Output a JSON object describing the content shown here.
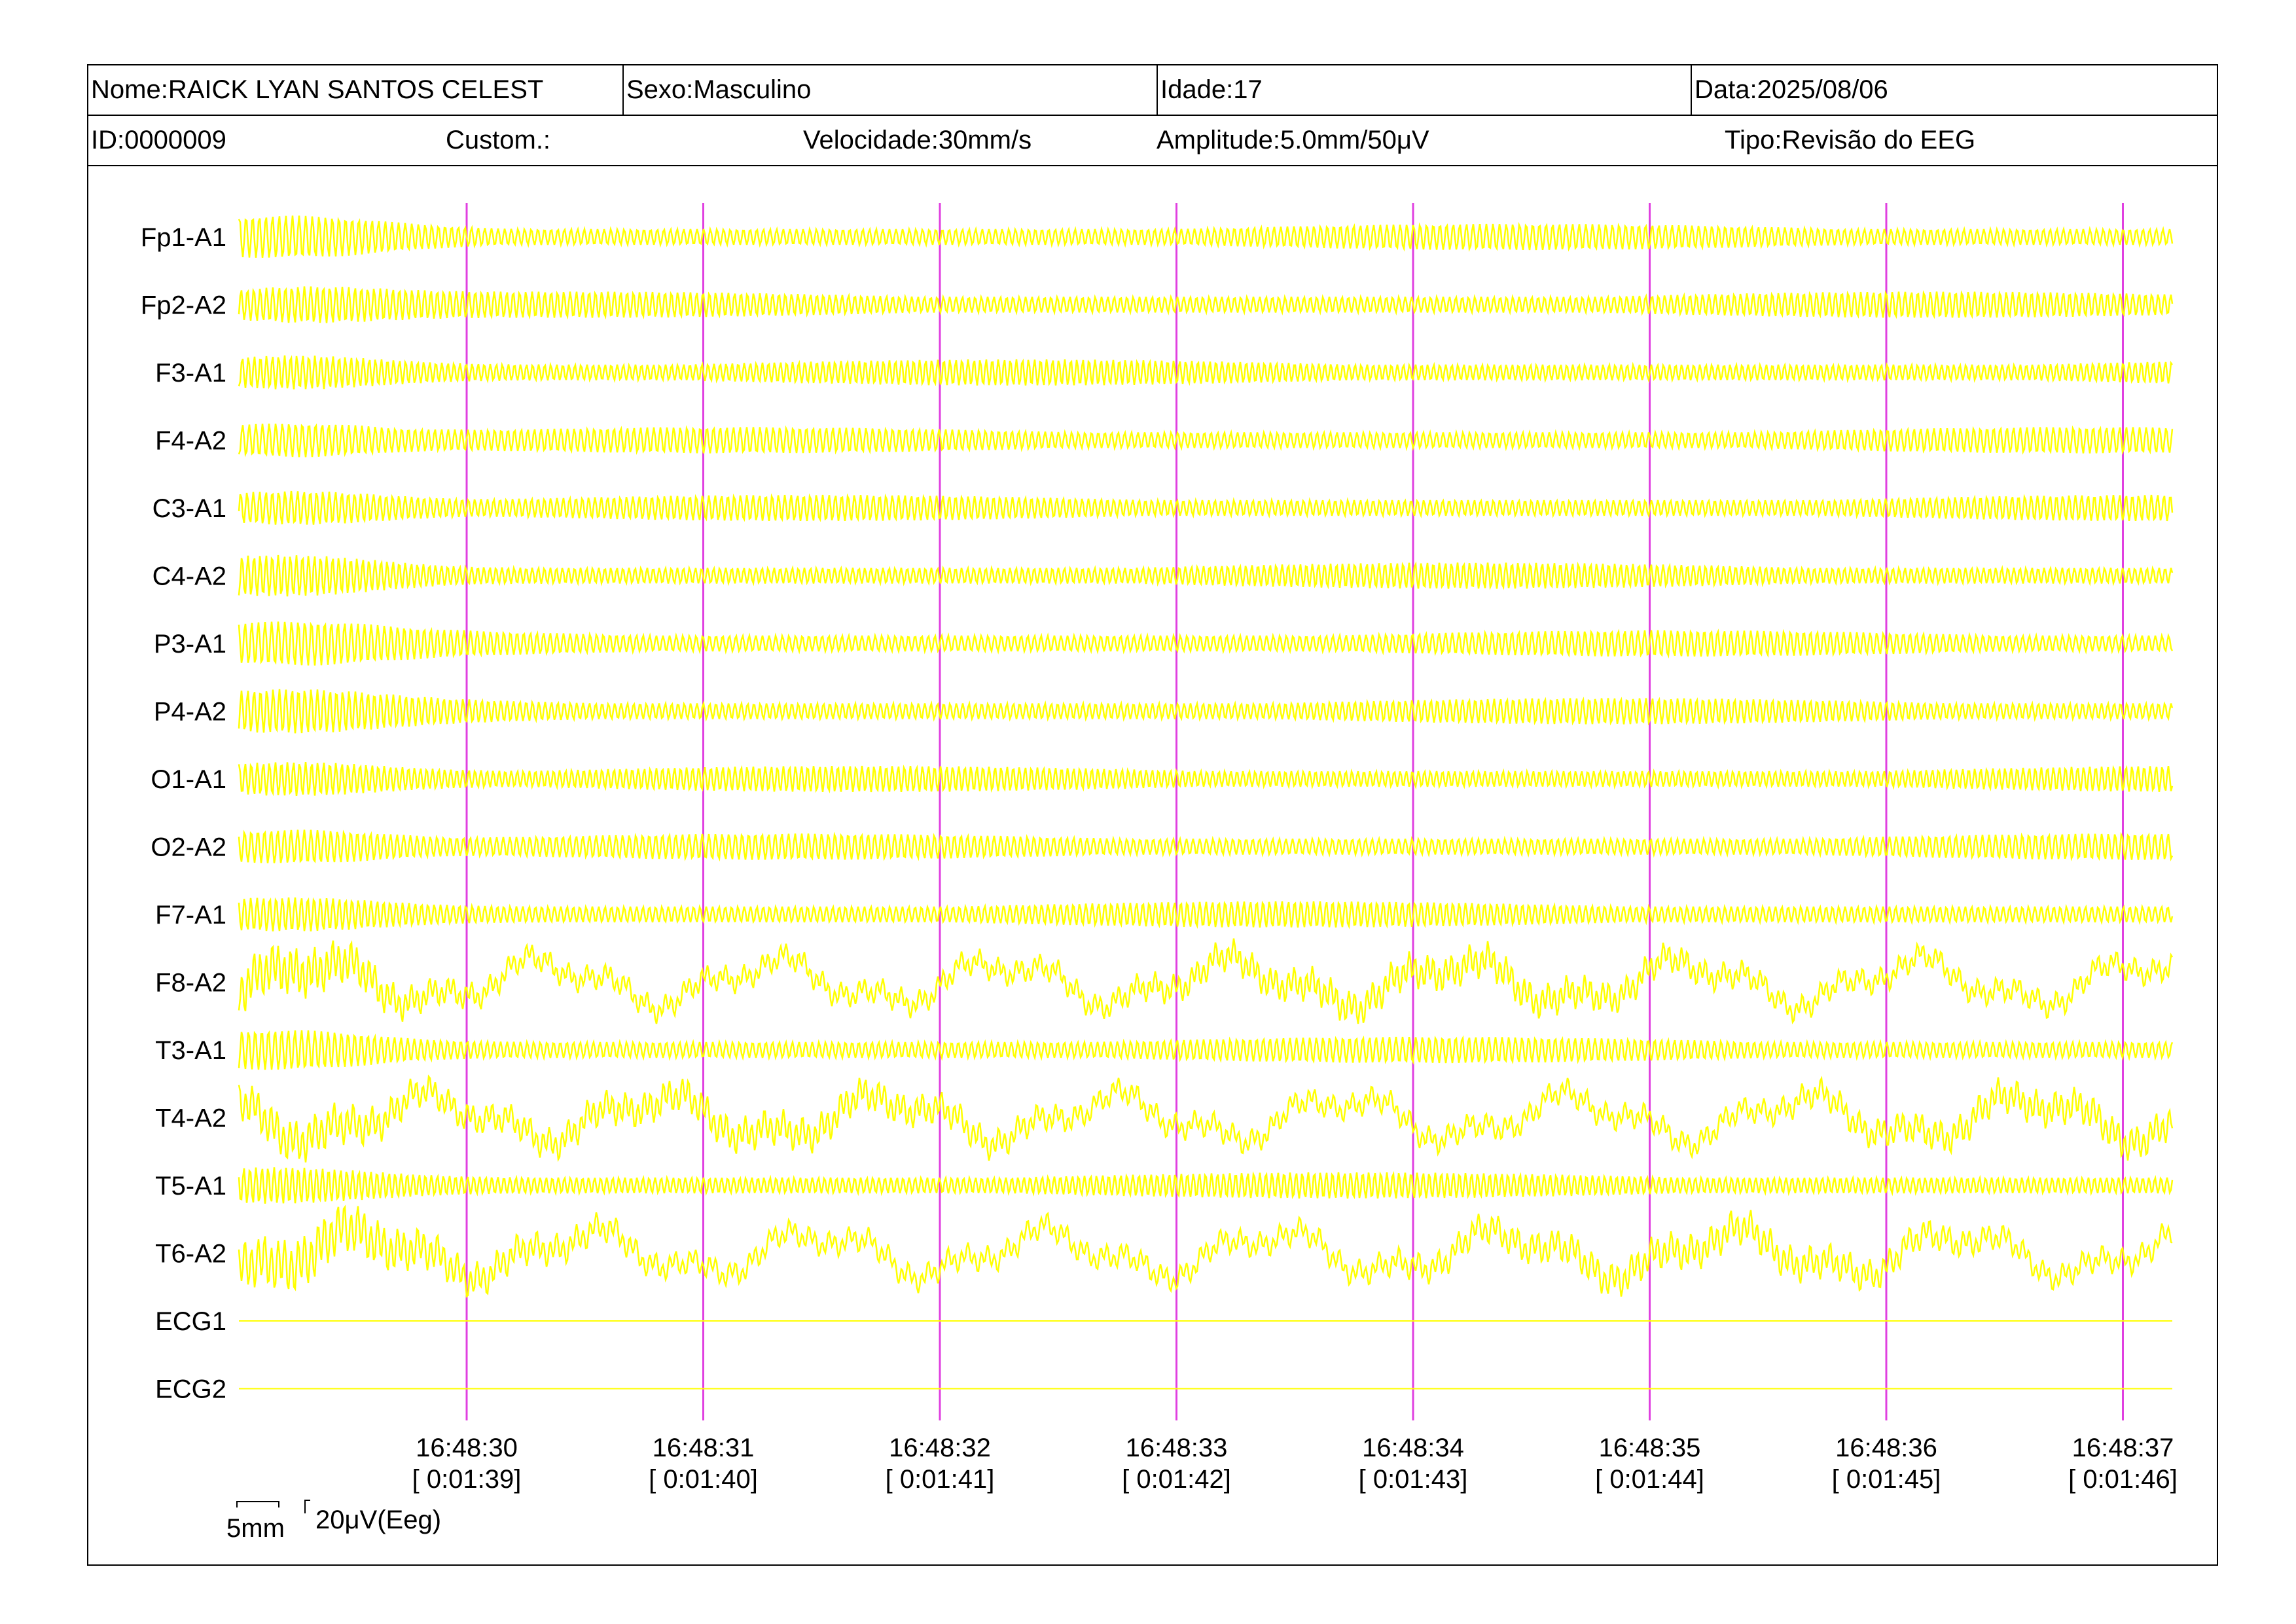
{
  "header": {
    "nome": "Nome:RAICK LYAN SANTOS CELEST",
    "sexo": "Sexo:Masculino",
    "idade": "Idade:17",
    "data": "Data:2025/08/06",
    "id": "ID:0000009",
    "custom": "Custom.:",
    "velocidade": "Velocidade:30mm/s",
    "amplitude": "Amplitude:5.0mm/50μV",
    "tipo": "Tipo:Revisão do EEG"
  },
  "chart_data": {
    "type": "line",
    "channels": [
      "Fp1-A1",
      "Fp2-A2",
      "F3-A1",
      "F4-A2",
      "C3-A1",
      "C4-A2",
      "P3-A1",
      "P4-A2",
      "O1-A1",
      "O2-A2",
      "F7-A1",
      "F8-A2",
      "T3-A1",
      "T4-A2",
      "T5-A1",
      "T6-A2",
      "ECG1",
      "ECG2"
    ],
    "time_markers": [
      {
        "clock": "16:48:30",
        "elapsed": "[ 0:01:39]"
      },
      {
        "clock": "16:48:31",
        "elapsed": "[ 0:01:40]"
      },
      {
        "clock": "16:48:32",
        "elapsed": "[ 0:01:41]"
      },
      {
        "clock": "16:48:33",
        "elapsed": "[ 0:01:42]"
      },
      {
        "clock": "16:48:34",
        "elapsed": "[ 0:01:43]"
      },
      {
        "clock": "16:48:35",
        "elapsed": "[ 0:01:44]"
      },
      {
        "clock": "16:48:36",
        "elapsed": "[ 0:01:45]"
      },
      {
        "clock": "16:48:37",
        "elapsed": "[ 0:01:46]"
      }
    ],
    "scale_bar": {
      "time_label": "5mm",
      "amp_label": "20μV(Eeg)"
    },
    "trace_color": "#ffff00",
    "marker_color": "#e040e0"
  }
}
